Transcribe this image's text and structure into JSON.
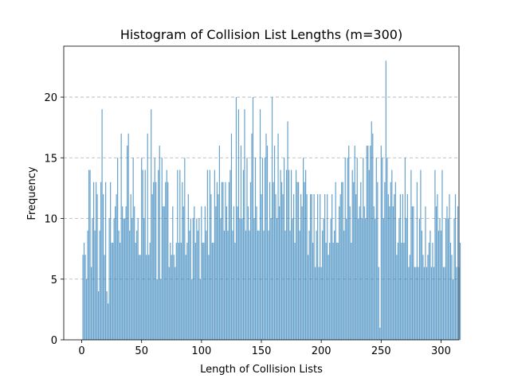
{
  "chart_data": {
    "type": "bar",
    "title": "Histogram of Collision List Lengths (m=300)",
    "xlabel": "Length of Collision Lists",
    "ylabel": "Frequency",
    "xlim": [
      -15,
      315
    ],
    "ylim": [
      0,
      24.2
    ],
    "xticks": [
      0,
      50,
      100,
      150,
      200,
      250,
      300
    ],
    "yticks": [
      0,
      5,
      10,
      15,
      20
    ],
    "grid": "y-dashed",
    "bar_color": "#1f77b4",
    "bar_alpha": 0.68,
    "x_start": 1,
    "values": [
      7,
      8,
      7,
      5,
      9,
      14,
      14,
      6,
      10,
      13,
      9,
      13,
      12,
      4,
      9,
      13,
      19,
      12,
      7,
      13,
      4,
      3,
      10,
      13,
      8,
      8,
      10,
      11,
      12,
      15,
      9,
      8,
      17,
      11,
      10,
      10,
      11,
      16,
      17,
      9,
      12,
      10,
      15,
      11,
      8,
      9,
      10,
      7,
      7,
      15,
      14,
      10,
      14,
      7,
      17,
      7,
      8,
      19,
      12,
      13,
      15,
      13,
      5,
      14,
      16,
      5,
      15,
      11,
      11,
      13,
      14,
      13,
      6,
      8,
      7,
      11,
      7,
      6,
      8,
      14,
      8,
      14,
      8,
      13,
      11,
      15,
      7,
      8,
      12,
      9,
      10,
      5,
      10,
      11,
      8,
      10,
      9,
      10,
      5,
      11,
      8,
      8,
      11,
      9,
      14,
      7,
      14,
      12,
      8,
      8,
      14,
      11,
      13,
      12,
      16,
      10,
      13,
      13,
      9,
      13,
      11,
      9,
      13,
      14,
      17,
      9,
      11,
      8,
      20,
      11,
      19,
      10,
      16,
      10,
      14,
      19,
      9,
      15,
      11,
      9,
      13,
      17,
      20,
      10,
      15,
      11,
      9,
      9,
      19,
      12,
      15,
      9,
      15,
      17,
      16,
      9,
      13,
      10,
      20,
      13,
      16,
      12,
      10,
      17,
      11,
      14,
      13,
      12,
      15,
      9,
      14,
      18,
      14,
      9,
      14,
      10,
      12,
      8,
      14,
      13,
      13,
      9,
      12,
      11,
      15,
      13,
      14,
      12,
      7,
      9,
      12,
      12,
      8,
      12,
      6,
      9,
      12,
      6,
      12,
      6,
      9,
      10,
      12,
      8,
      12,
      7,
      8,
      10,
      12,
      8,
      9,
      13,
      8,
      8,
      11,
      12,
      13,
      13,
      9,
      15,
      10,
      15,
      16,
      11,
      8,
      14,
      13,
      16,
      12,
      15,
      10,
      11,
      13,
      10,
      15,
      11,
      10,
      16,
      16,
      14,
      16,
      18,
      17,
      11,
      10,
      15,
      13,
      6,
      1,
      16,
      15,
      10,
      13,
      23,
      15,
      12,
      11,
      13,
      14,
      11,
      12,
      13,
      7,
      8,
      10,
      12,
      8,
      12,
      8,
      15,
      10,
      12,
      6,
      7,
      14,
      11,
      11,
      6,
      6,
      13,
      6,
      10,
      14,
      9,
      7,
      6,
      11,
      6,
      7,
      8,
      9,
      6,
      8,
      6,
      14,
      11,
      12,
      9,
      10,
      9,
      14,
      6,
      6,
      10,
      11,
      10,
      12,
      8,
      7,
      5,
      10,
      12,
      6,
      11,
      6,
      8
    ]
  }
}
